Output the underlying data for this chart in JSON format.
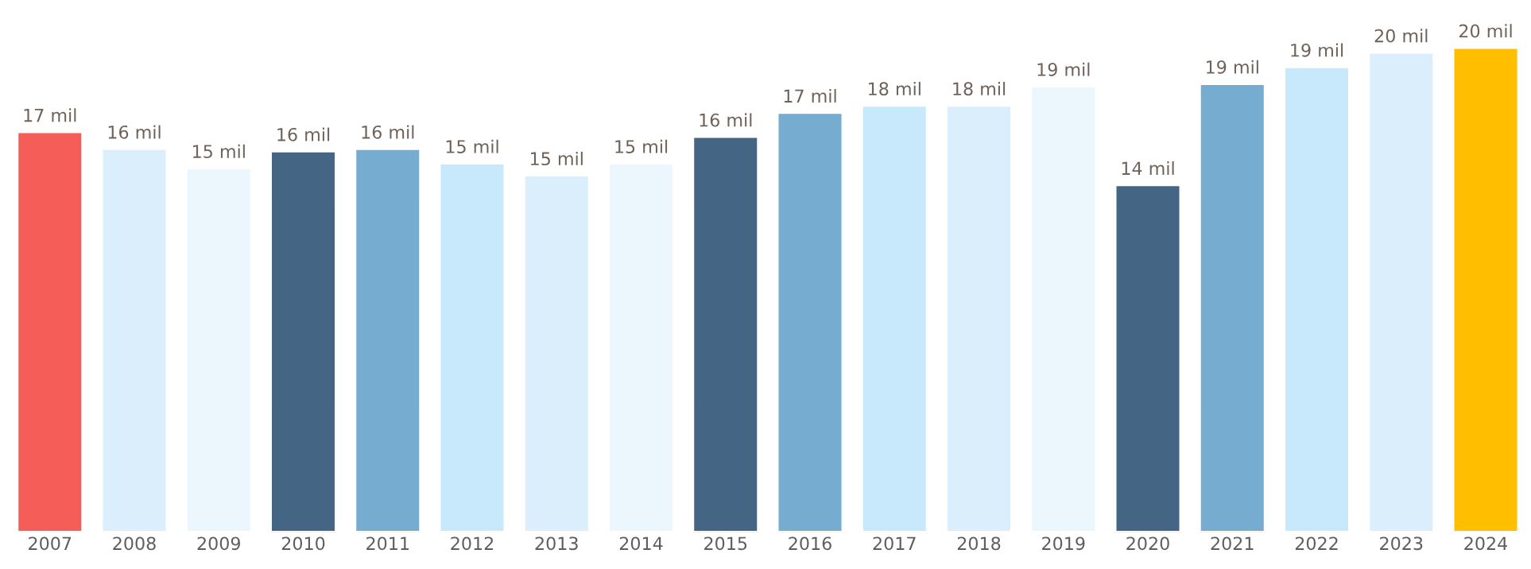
{
  "chart_data": {
    "type": "bar",
    "categories": [
      "2007",
      "2008",
      "2009",
      "2010",
      "2011",
      "2012",
      "2013",
      "2014",
      "2015",
      "2016",
      "2017",
      "2018",
      "2019",
      "2020",
      "2021",
      "2022",
      "2023",
      "2024"
    ],
    "values": [
      16.6,
      15.9,
      15.1,
      15.8,
      15.9,
      15.3,
      14.8,
      15.3,
      16.4,
      17.4,
      17.7,
      17.7,
      18.5,
      14.4,
      18.6,
      19.3,
      19.9,
      20.1
    ],
    "value_labels": [
      "17 mil",
      "16 mil",
      "15 mil",
      "16 mil",
      "16 mil",
      "15 mil",
      "15 mil",
      "15 mil",
      "16 mil",
      "17 mil",
      "18 mil",
      "18 mil",
      "19 mil",
      "14 mil",
      "19 mil",
      "19 mil",
      "20 mil",
      "20 mil"
    ],
    "colors": [
      "#f45d58",
      "#daeefc",
      "#ebf6fd",
      "#446684",
      "#77acd1",
      "#c8e8fb",
      "#daeefc",
      "#ebf6fd",
      "#446684",
      "#77acd1",
      "#c8e8fb",
      "#daeefc",
      "#ebf6fd",
      "#446684",
      "#77acd1",
      "#c8e8fb",
      "#daeefc",
      "#ffbf00"
    ],
    "grid": false,
    "legend": false
  }
}
